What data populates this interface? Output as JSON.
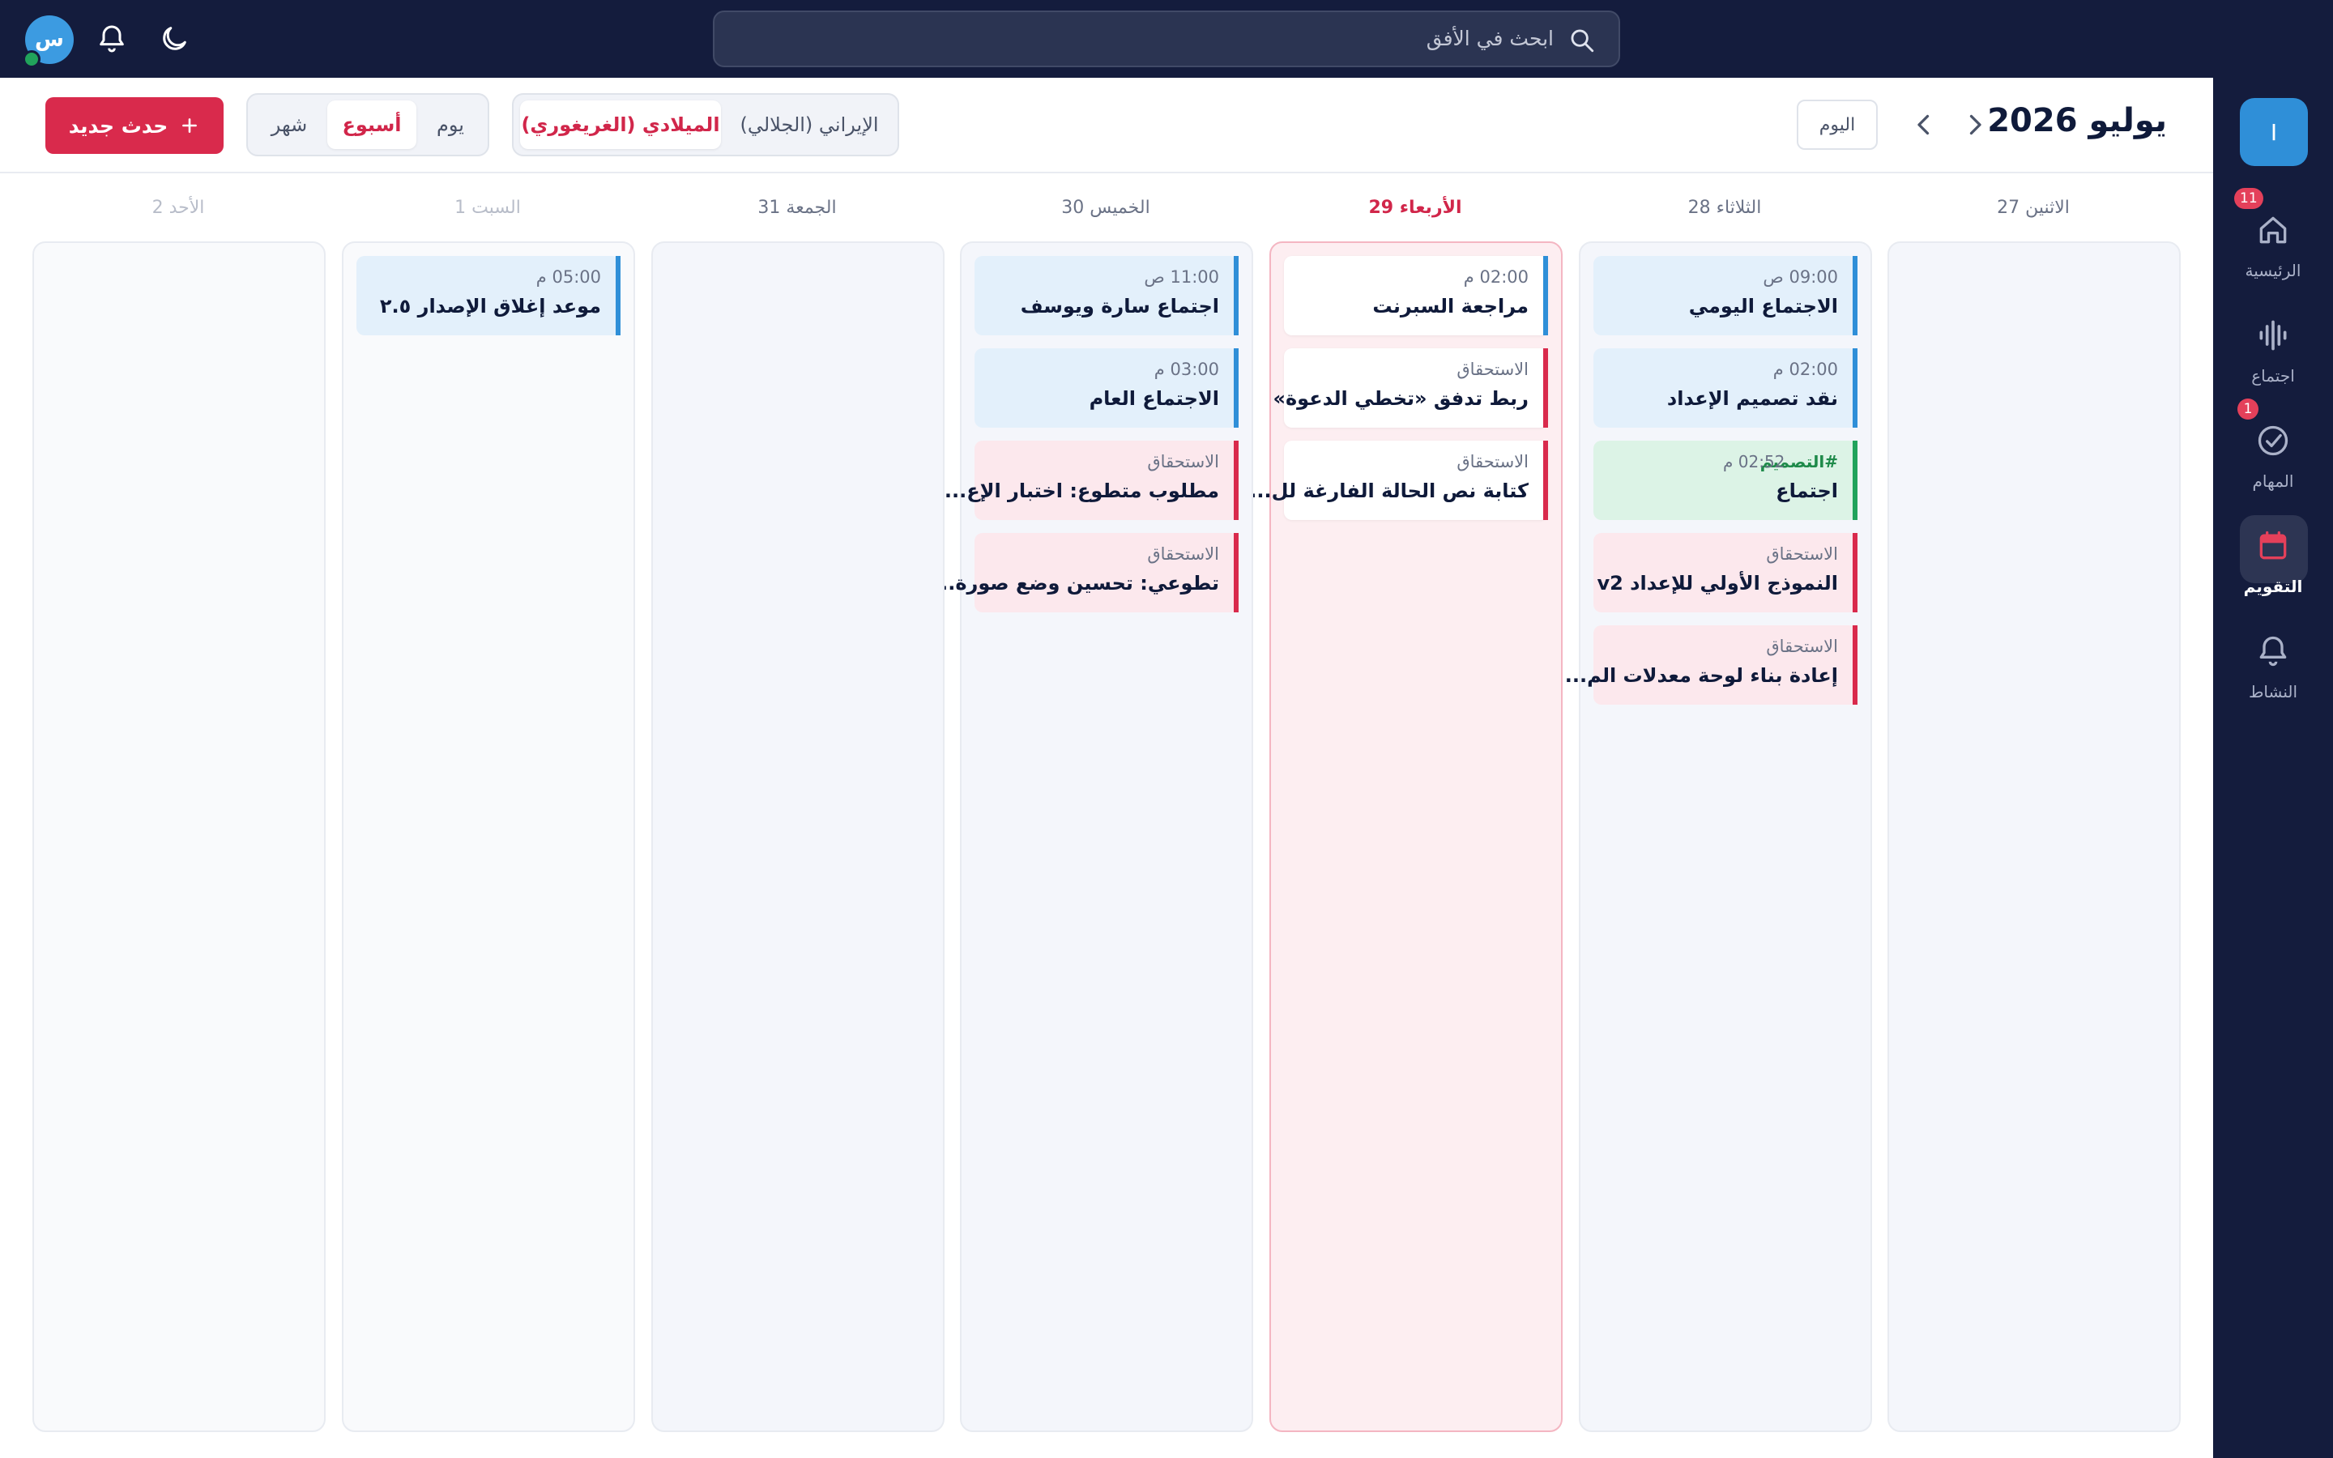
{
  "topbar": {
    "search_placeholder": "ابحث في الأفق",
    "avatar_initial": "س"
  },
  "sidebar": {
    "workspace_initial": "I",
    "items": [
      {
        "label": "الرئيسية",
        "icon": "home-icon",
        "count": "11"
      },
      {
        "label": "اجتماع",
        "icon": "waveform-icon"
      },
      {
        "label": "المهام",
        "icon": "check-circle-icon",
        "count": "1"
      },
      {
        "label": "التقويم",
        "icon": "calendar-icon",
        "active": true
      },
      {
        "label": "النشاط",
        "icon": "bell-icon"
      }
    ]
  },
  "header": {
    "month_title": "يوليو 2026",
    "today_label": "اليوم",
    "calendar_systems": {
      "gregorian": "الميلادي (الغريغوري)",
      "persian": "الإيراني (الجلالي)"
    },
    "views": {
      "day": "يوم",
      "week": "أسبوع",
      "month": "شهر"
    },
    "new_event_label": "حدث جديد"
  },
  "days": [
    {
      "label": "الاثنين 27",
      "events": []
    },
    {
      "label": "الثلاثاء 28",
      "events": [
        {
          "meta": "09:00 ص",
          "title": "الاجتماع اليومي",
          "color": "blue"
        },
        {
          "meta": "02:00 م",
          "title": "نقد تصميم الإعداد",
          "color": "blue"
        },
        {
          "tag": "#التصميم",
          "meta": "02:52 م",
          "title": "اجتماع",
          "color": "green"
        },
        {
          "meta": "الاستحقاق",
          "title": "النموذج الأولي للإعداد v2",
          "color": "pink"
        },
        {
          "meta": "الاستحقاق",
          "title": "إعادة بناء لوحة معدلات الم...",
          "color": "pink"
        }
      ]
    },
    {
      "label": "الأربعاء 29",
      "today": true,
      "events": [
        {
          "meta": "02:00 م",
          "title": "مراجعة السبرنت",
          "color": "blue"
        },
        {
          "meta": "الاستحقاق",
          "title": "ربط تدفق «تخطي الدعوة»",
          "color": "red"
        },
        {
          "meta": "الاستحقاق",
          "title": "كتابة نص الحالة الفارغة لل...",
          "color": "red"
        }
      ]
    },
    {
      "label": "الخميس 30",
      "events": [
        {
          "meta": "11:00 ص",
          "title": "اجتماع سارة ويوسف",
          "color": "blue"
        },
        {
          "meta": "03:00 م",
          "title": "الاجتماع العام",
          "color": "blue"
        },
        {
          "meta": "الاستحقاق",
          "title": "مطلوب متطوع: اختبار الإع...",
          "color": "pink"
        },
        {
          "meta": "الاستحقاق",
          "title": "تطوعي: تحسين وضع صورة...",
          "color": "pink"
        }
      ]
    },
    {
      "label": "الجمعة 31",
      "events": []
    },
    {
      "label": "السبت 1",
      "muted": true,
      "events": [
        {
          "meta": "05:00 م",
          "title": "موعد إغلاق الإصدار ٢.٥",
          "color": "blue"
        }
      ]
    },
    {
      "label": "الأحد 2",
      "muted": true,
      "events": []
    }
  ],
  "colors": {
    "accent": "#d92a4c",
    "navy": "#141c3d",
    "blue": "#2f8fd8",
    "green": "#21a35b"
  }
}
